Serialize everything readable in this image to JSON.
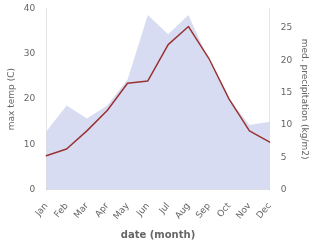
{
  "chart_data": {
    "type": "line",
    "xlabel": "date (month)",
    "ylabel": "max temp (C)",
    "y2label": "med. precipitation (kg/m2)",
    "categories": [
      "Jan",
      "Feb",
      "Mar",
      "Apr",
      "May",
      "Jun",
      "Jul",
      "Aug",
      "Sep",
      "Oct",
      "Nov",
      "Dec"
    ],
    "series": [
      {
        "type": "line",
        "color": "#993333",
        "values": [
          7.5,
          9.0,
          13.0,
          17.5,
          23.5,
          24.0,
          32.0,
          36.0,
          29.0,
          20.0,
          13.0,
          10.5
        ]
      },
      {
        "type": "area",
        "axis": "y2",
        "color": "#b8c0e8",
        "values": [
          9.0,
          13.0,
          11.0,
          13.0,
          17.0,
          27.0,
          24.0,
          27.0,
          20.0,
          14.0,
          10.0,
          10.5
        ]
      }
    ],
    "ylim": [
      0,
      40
    ],
    "yticks": [
      0,
      10,
      20,
      30,
      40
    ],
    "y2lim": [
      0,
      28
    ],
    "y2ticks": [
      0,
      5,
      10,
      15,
      20,
      25
    ],
    "grid": false
  }
}
